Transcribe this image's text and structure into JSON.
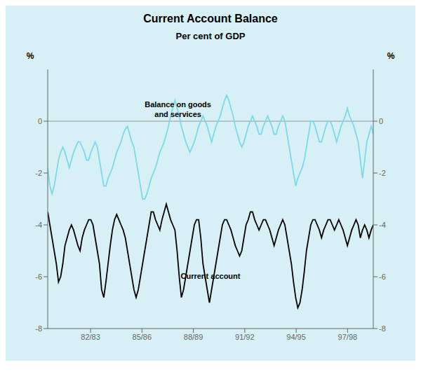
{
  "chart_data": {
    "type": "line",
    "title": "Current Account Balance",
    "subtitle": "Per cent of GDP",
    "background_color": "#d6f0f5",
    "y_label": "%",
    "y2_label": "%",
    "annotations": [
      {
        "text": "Balance on goods\nand services"
      },
      {
        "text": "Current account"
      }
    ],
    "reference_lines": [
      0
    ],
    "xlim": [
      1980,
      1999
    ],
    "xticks": [
      {
        "value": 1982.5,
        "label": "82/83"
      },
      {
        "value": 1985.5,
        "label": "85/86"
      },
      {
        "value": 1988.5,
        "label": "88/89"
      },
      {
        "value": 1991.5,
        "label": "91/92"
      },
      {
        "value": 1994.5,
        "label": "94/95"
      },
      {
        "value": 1997.5,
        "label": "97/98"
      }
    ],
    "ylim": [
      -8,
      2
    ],
    "yticks": [
      -8,
      -6,
      -4,
      -2,
      0
    ],
    "y2lim": [
      -8,
      2
    ],
    "y2ticks": [
      -8,
      -6,
      -4,
      -2,
      0
    ],
    "grid": false,
    "x": [
      1980.0,
      1980.126,
      1980.252,
      1980.377,
      1980.503,
      1980.629,
      1980.755,
      1980.881,
      1981.007,
      1981.132,
      1981.258,
      1981.384,
      1981.51,
      1981.636,
      1981.762,
      1981.887,
      1982.013,
      1982.139,
      1982.265,
      1982.391,
      1982.517,
      1982.642,
      1982.768,
      1982.894,
      1983.02,
      1983.146,
      1983.272,
      1983.397,
      1983.523,
      1983.649,
      1983.775,
      1983.901,
      1984.026,
      1984.152,
      1984.278,
      1984.404,
      1984.53,
      1984.656,
      1984.781,
      1984.907,
      1985.033,
      1985.159,
      1985.285,
      1985.411,
      1985.536,
      1985.662,
      1985.788,
      1985.914,
      1986.04,
      1986.166,
      1986.291,
      1986.417,
      1986.543,
      1986.669,
      1986.795,
      1986.921,
      1987.046,
      1987.172,
      1987.298,
      1987.424,
      1987.55,
      1987.675,
      1987.801,
      1987.927,
      1988.053,
      1988.179,
      1988.305,
      1988.43,
      1988.556,
      1988.682,
      1988.808,
      1988.934,
      1989.06,
      1989.185,
      1989.311,
      1989.437,
      1989.563,
      1989.689,
      1989.815,
      1989.94,
      1990.066,
      1990.192,
      1990.318,
      1990.444,
      1990.57,
      1990.695,
      1990.821,
      1990.947,
      1991.073,
      1991.199,
      1991.325,
      1991.45,
      1991.576,
      1991.702,
      1991.828,
      1991.954,
      1992.079,
      1992.205,
      1992.331,
      1992.457,
      1992.583,
      1992.709,
      1992.834,
      1992.96,
      1993.086,
      1993.212,
      1993.338,
      1993.464,
      1993.589,
      1993.715,
      1993.841,
      1993.967,
      1994.093,
      1994.219,
      1994.344,
      1994.47,
      1994.596,
      1994.722,
      1994.848,
      1994.974,
      1995.099,
      1995.225,
      1995.351,
      1995.477,
      1995.603,
      1995.728,
      1995.854,
      1995.98,
      1996.106,
      1996.232,
      1996.358,
      1996.483,
      1996.609,
      1996.735,
      1996.861,
      1996.987,
      1997.113,
      1997.238,
      1997.364,
      1997.49,
      1997.616,
      1997.742,
      1997.868,
      1997.993,
      1998.119,
      1998.245,
      1998.371,
      1998.497,
      1998.623,
      1998.748,
      1998.874,
      1999.0
    ],
    "series": [
      {
        "color": "#7fd8e8",
        "values": [
          -1.8,
          -2.5,
          -2.8,
          -2.5,
          -2.0,
          -1.5,
          -1.2,
          -1.0,
          -1.2,
          -1.5,
          -1.8,
          -1.5,
          -1.2,
          -1.0,
          -0.8,
          -0.8,
          -1.0,
          -1.2,
          -1.5,
          -1.5,
          -1.2,
          -1.0,
          -0.8,
          -1.0,
          -1.5,
          -2.0,
          -2.5,
          -2.5,
          -2.2,
          -2.0,
          -1.8,
          -1.5,
          -1.2,
          -1.0,
          -0.8,
          -0.5,
          -0.3,
          -0.2,
          -0.5,
          -0.8,
          -1.0,
          -1.5,
          -2.0,
          -2.5,
          -3.0,
          -3.0,
          -2.8,
          -2.5,
          -2.2,
          -2.0,
          -1.8,
          -1.5,
          -1.2,
          -1.0,
          -0.8,
          -0.5,
          -0.2,
          0.2,
          0.5,
          0.8,
          0.5,
          0.2,
          -0.2,
          -0.5,
          -0.8,
          -1.0,
          -1.2,
          -1.0,
          -0.8,
          -0.5,
          -0.2,
          0.0,
          0.2,
          0.0,
          -0.2,
          -0.5,
          -0.8,
          -0.5,
          -0.2,
          0.0,
          0.2,
          0.5,
          0.8,
          1.0,
          0.8,
          0.5,
          0.2,
          -0.2,
          -0.5,
          -0.8,
          -1.0,
          -0.8,
          -0.5,
          -0.2,
          0.0,
          0.2,
          0.0,
          -0.2,
          -0.5,
          -0.5,
          -0.2,
          0.0,
          0.2,
          0.0,
          -0.2,
          -0.5,
          -0.5,
          -0.2,
          0.0,
          0.2,
          0.0,
          -0.5,
          -1.0,
          -1.5,
          -2.0,
          -2.5,
          -2.2,
          -2.0,
          -1.8,
          -1.5,
          -1.0,
          -0.5,
          0.0,
          0.0,
          -0.2,
          -0.5,
          -0.8,
          -0.8,
          -0.5,
          -0.2,
          0.0,
          0.0,
          -0.2,
          -0.5,
          -0.8,
          -0.5,
          -0.2,
          0.0,
          0.2,
          0.5,
          0.2,
          0.0,
          -0.2,
          -0.5,
          -0.8,
          -1.5,
          -2.2,
          -1.5,
          -0.8,
          -0.5,
          -0.2,
          -0.5
        ]
      },
      {
        "color": "#000000",
        "values": [
          -3.5,
          -4.0,
          -4.5,
          -5.0,
          -5.5,
          -6.2,
          -6.0,
          -5.5,
          -4.8,
          -4.5,
          -4.2,
          -4.0,
          -4.2,
          -4.5,
          -4.8,
          -5.0,
          -4.5,
          -4.2,
          -4.0,
          -3.8,
          -3.8,
          -4.0,
          -4.5,
          -5.0,
          -5.5,
          -6.5,
          -6.8,
          -6.2,
          -5.5,
          -4.8,
          -4.2,
          -3.8,
          -3.6,
          -3.8,
          -4.0,
          -4.2,
          -4.5,
          -5.0,
          -5.5,
          -6.0,
          -6.5,
          -6.8,
          -6.5,
          -6.0,
          -5.5,
          -5.0,
          -4.5,
          -4.0,
          -3.5,
          -3.5,
          -3.8,
          -4.0,
          -4.2,
          -3.8,
          -3.5,
          -3.2,
          -3.5,
          -3.8,
          -4.0,
          -4.2,
          -5.0,
          -6.0,
          -6.8,
          -6.5,
          -6.0,
          -5.5,
          -5.0,
          -4.5,
          -4.0,
          -3.8,
          -3.8,
          -4.5,
          -5.5,
          -6.0,
          -6.5,
          -7.0,
          -6.5,
          -6.0,
          -5.5,
          -5.0,
          -4.5,
          -4.0,
          -3.8,
          -3.8,
          -4.0,
          -4.2,
          -4.5,
          -4.8,
          -5.0,
          -5.2,
          -5.0,
          -4.5,
          -4.0,
          -3.8,
          -3.5,
          -3.5,
          -3.8,
          -4.0,
          -4.2,
          -4.0,
          -3.8,
          -3.8,
          -4.0,
          -4.2,
          -4.5,
          -4.8,
          -4.5,
          -4.2,
          -4.0,
          -3.8,
          -4.0,
          -4.5,
          -5.0,
          -5.5,
          -6.2,
          -6.8,
          -7.2,
          -7.0,
          -6.5,
          -5.8,
          -5.0,
          -4.5,
          -4.0,
          -3.8,
          -3.8,
          -4.0,
          -4.2,
          -4.5,
          -4.2,
          -4.0,
          -3.8,
          -3.8,
          -4.0,
          -4.2,
          -4.0,
          -3.8,
          -4.0,
          -4.2,
          -4.5,
          -4.8,
          -4.5,
          -4.2,
          -4.0,
          -3.8,
          -4.0,
          -4.5,
          -4.2,
          -4.0,
          -4.2,
          -4.5,
          -4.2,
          -4.0
        ]
      }
    ]
  }
}
